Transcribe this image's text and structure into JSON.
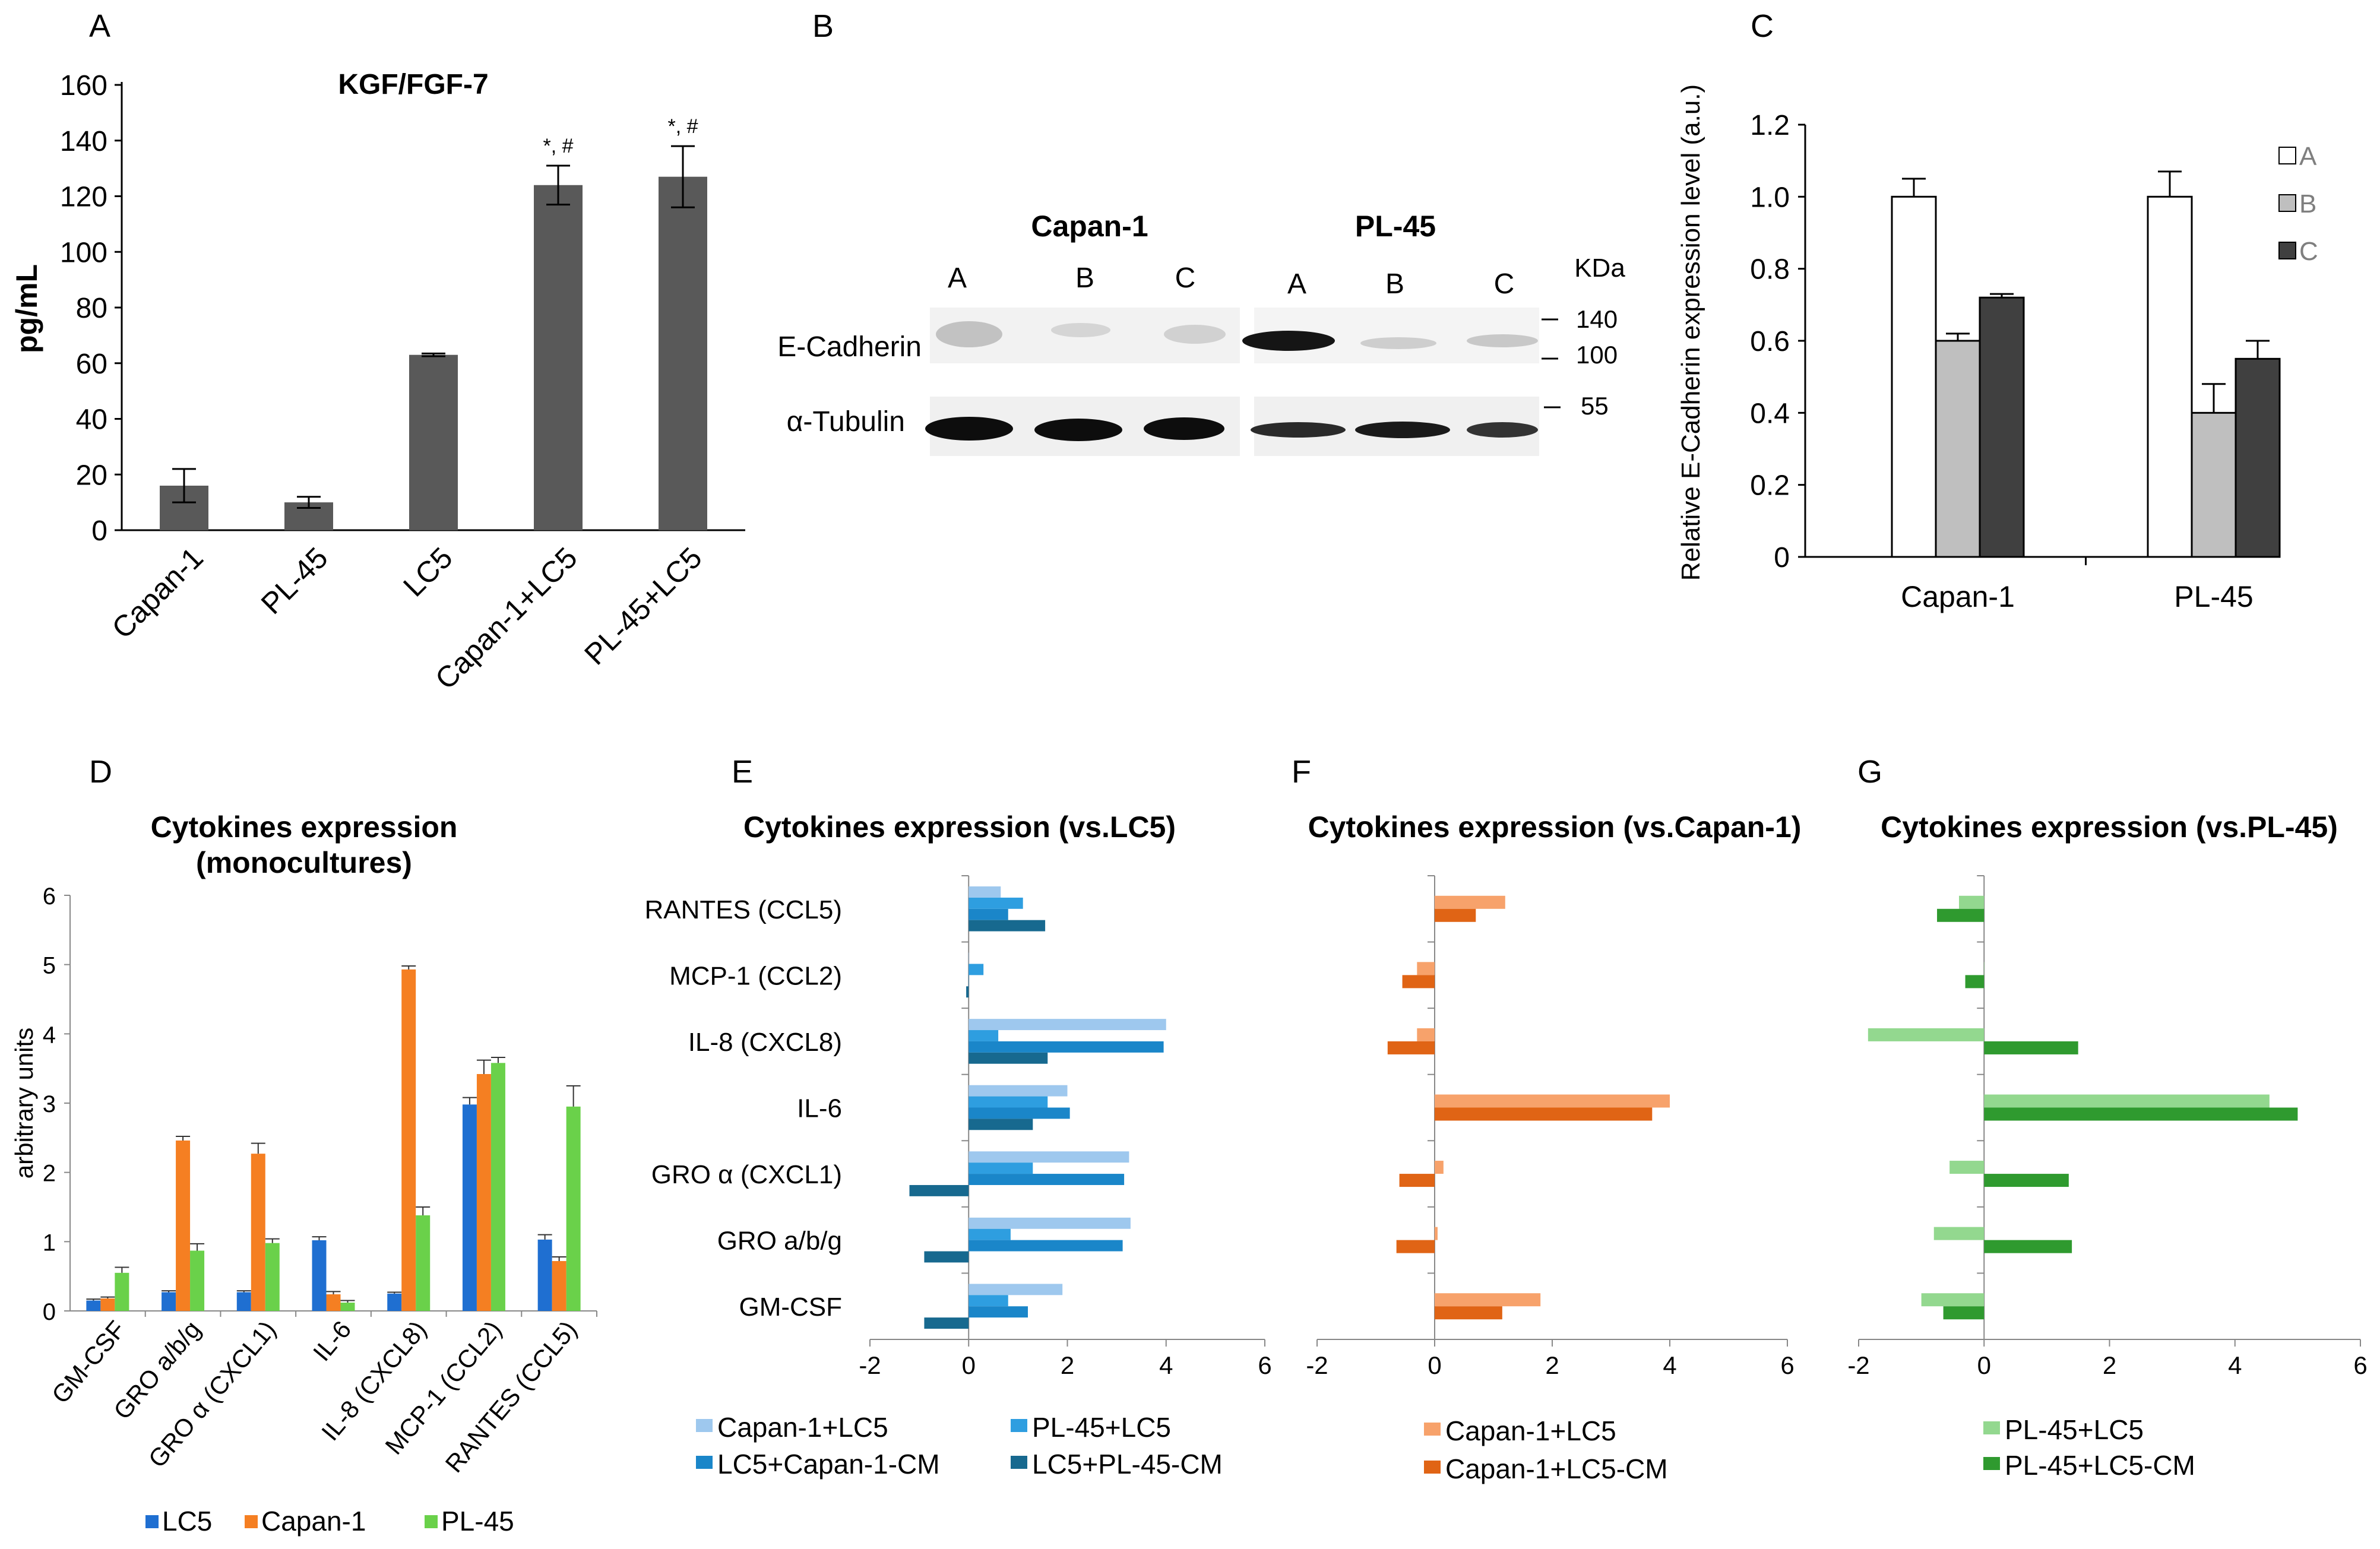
{
  "colors": {
    "bar_gray": "#595959",
    "wb_A": "#ffffff",
    "wb_B": "#bfbfbf",
    "wb_C": "#404040",
    "lc5": "#1f6fd1",
    "capan": "#f57f22",
    "pl45": "#6ad14a",
    "e1": "#9ec8ee",
    "e2": "#2e9ee0",
    "e3": "#1a86c9",
    "e4": "#17698f",
    "f1": "#f7a26b",
    "f2": "#e06415",
    "g1": "#93d88f",
    "g2": "#2f9a2f"
  },
  "panel_letters": {
    "A": "A",
    "B": "B",
    "C": "C",
    "D": "D",
    "E": "E",
    "F": "F",
    "G": "G"
  },
  "blot": {
    "group1": "Capan-1",
    "group2": "PL-45",
    "lanes": [
      "A",
      "B",
      "C",
      "A",
      "B",
      "C"
    ],
    "kda_label": "KDa",
    "markers": [
      "140",
      "100",
      "55"
    ],
    "row1_label": "E-Cadherin",
    "row2_label": "α-Tubulin"
  },
  "chart_data": [
    {
      "id": "A",
      "type": "bar",
      "title": "KGF/FGF-7",
      "ylabel": "pg/mL",
      "xlabel": "",
      "categories": [
        "Capan-1",
        "PL-45",
        "LC5",
        "Capan-1+LC5",
        "PL-45+LC5"
      ],
      "values": [
        16,
        10,
        63,
        124,
        127
      ],
      "errors": [
        6,
        2,
        0.5,
        7,
        11
      ],
      "annotations": [
        "",
        "",
        "",
        "*, #",
        "*, #"
      ],
      "ylim": [
        0,
        160
      ],
      "yticks": [
        "0",
        "20",
        "40",
        "60",
        "80",
        "100",
        "120",
        "140",
        "160"
      ]
    },
    {
      "id": "C",
      "type": "bar",
      "ylabel": "Relative E-Cadherin expression level (a.u.)",
      "categories": [
        "Capan-1",
        "PL-45"
      ],
      "series": [
        {
          "name": "A",
          "values": [
            1.0,
            1.0
          ],
          "errors": [
            0.05,
            0.07
          ]
        },
        {
          "name": "B",
          "values": [
            0.6,
            0.4
          ],
          "errors": [
            0.02,
            0.08
          ]
        },
        {
          "name": "C",
          "values": [
            0.72,
            0.55
          ],
          "errors": [
            0.01,
            0.05
          ]
        }
      ],
      "ylim": [
        0,
        1.2
      ],
      "yticks": [
        "0",
        "0.2",
        "0.4",
        "0.6",
        "0.8",
        "1.0",
        "1.2"
      ],
      "legend_position": "top-right"
    },
    {
      "id": "D",
      "type": "bar",
      "title": "Cytokines expression",
      "subtitle": "(monocultures)",
      "ylabel": "arbitrary units",
      "categories": [
        "GM-CSF",
        "GRO a/b/g",
        "GRO α (CXCL1)",
        "IL-6",
        "IL-8 (CXCL8)",
        "MCP-1 (CCL2)",
        "RANTES (CCL5)"
      ],
      "series": [
        {
          "name": "LC5",
          "values": [
            0.15,
            0.27,
            0.27,
            1.02,
            0.25,
            2.98,
            1.03
          ],
          "errors": [
            0.02,
            0.02,
            0.02,
            0.05,
            0.02,
            0.1,
            0.07
          ]
        },
        {
          "name": "Capan-1",
          "values": [
            0.18,
            2.46,
            2.27,
            0.24,
            4.93,
            3.42,
            0.72
          ],
          "errors": [
            0.02,
            0.06,
            0.15,
            0.04,
            0.05,
            0.2,
            0.06
          ]
        },
        {
          "name": "PL-45",
          "values": [
            0.55,
            0.87,
            0.98,
            0.12,
            1.38,
            3.58,
            2.95
          ],
          "errors": [
            0.08,
            0.1,
            0.06,
            0.03,
            0.12,
            0.08,
            0.3
          ]
        }
      ],
      "ylim": [
        0,
        6
      ],
      "yticks": [
        "0",
        "1",
        "2",
        "3",
        "4",
        "5",
        "6"
      ],
      "legend_position": "bottom"
    },
    {
      "id": "E",
      "type": "bar",
      "orientation": "horizontal",
      "title": "Cytokines expression (vs.LC5)",
      "categories": [
        "RANTES (CCL5)",
        "MCP-1 (CCL2)",
        "IL-8 (CXCL8)",
        "IL-6",
        "GRO α (CXCL1)",
        "GRO a/b/g",
        "GM-CSF"
      ],
      "series": [
        {
          "name": "Capan-1+LC5",
          "values": [
            0.65,
            0,
            4.0,
            2.0,
            3.25,
            3.28,
            1.9
          ]
        },
        {
          "name": "PL-45+LC5",
          "values": [
            1.1,
            0.3,
            0.6,
            1.6,
            1.3,
            0.85,
            0.8
          ]
        },
        {
          "name": "LC5+Capan-1-CM",
          "values": [
            0.8,
            0,
            3.95,
            2.05,
            3.15,
            3.12,
            1.2
          ]
        },
        {
          "name": "LC5+PL-45-CM",
          "values": [
            1.55,
            -0.05,
            1.6,
            1.3,
            -1.2,
            -0.9,
            -0.9
          ]
        }
      ],
      "xlim": [
        -2,
        6
      ],
      "xticks": [
        "-2",
        "0",
        "2",
        "4",
        "6"
      ],
      "legend_position": "bottom"
    },
    {
      "id": "F",
      "type": "bar",
      "orientation": "horizontal",
      "title": "Cytokines expression (vs.Capan-1)",
      "categories": [
        "RANTES (CCL5)",
        "MCP-1 (CCL2)",
        "IL-8 (CXCL8)",
        "IL-6",
        "GRO α (CXCL1)",
        "GRO a/b/g",
        "GM-CSF"
      ],
      "series": [
        {
          "name": "Capan-1+LC5",
          "values": [
            1.2,
            -0.3,
            -0.3,
            4.0,
            0.15,
            0.05,
            1.8
          ]
        },
        {
          "name": "Capan-1+LC5-CM",
          "values": [
            0.7,
            -0.55,
            -0.8,
            3.7,
            -0.6,
            -0.65,
            1.15
          ]
        }
      ],
      "xlim": [
        -2,
        6
      ],
      "xticks": [
        "-2",
        "0",
        "2",
        "4",
        "6"
      ],
      "legend_position": "bottom"
    },
    {
      "id": "G",
      "type": "bar",
      "orientation": "horizontal",
      "title": "Cytokines expression (vs.PL-45)",
      "categories": [
        "RANTES (CCL5)",
        "MCP-1 (CCL2)",
        "IL-8 (CXCL8)",
        "IL-6",
        "GRO α (CXCL1)",
        "GRO a/b/g",
        "GM-CSF"
      ],
      "series": [
        {
          "name": "PL-45+LC5",
          "values": [
            -0.4,
            0,
            -1.85,
            4.55,
            -0.55,
            -0.8,
            -1.0
          ]
        },
        {
          "name": "PL-45+LC5-CM",
          "values": [
            -0.75,
            -0.3,
            1.5,
            5.0,
            1.35,
            1.4,
            -0.65
          ]
        }
      ],
      "xlim": [
        -2,
        6
      ],
      "xticks": [
        "-2",
        "0",
        "2",
        "4",
        "6"
      ],
      "legend_position": "bottom"
    }
  ]
}
